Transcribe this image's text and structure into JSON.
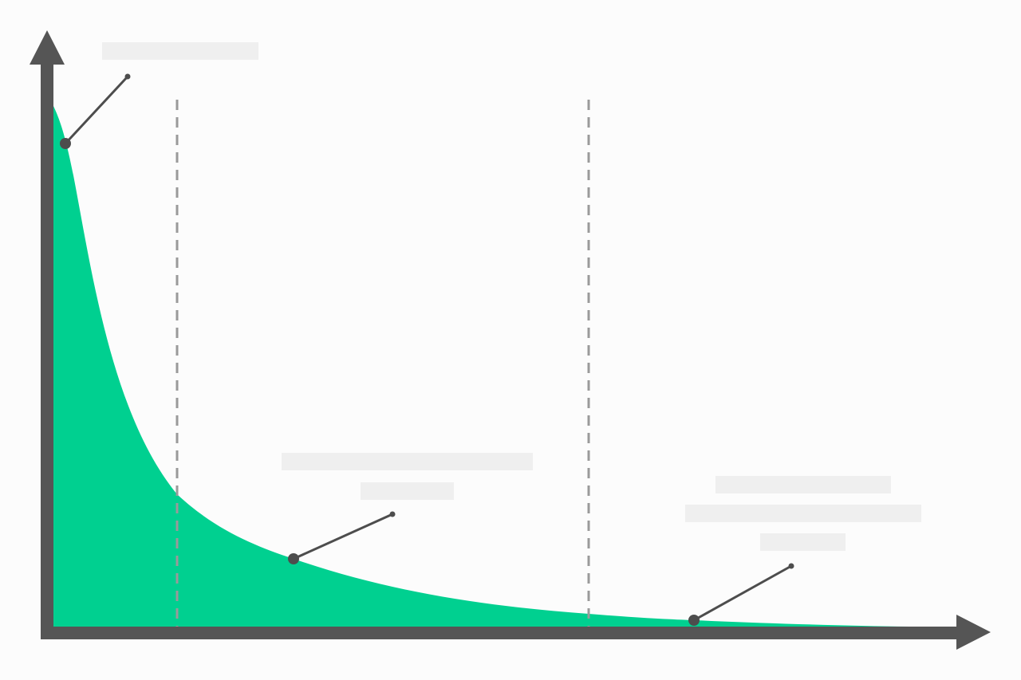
{
  "diagram": {
    "kind": "long-tail distribution curve",
    "colors": {
      "background": "#fcfcfc",
      "area_fill": "#00d090",
      "axis": "#555555",
      "callout_line": "#4d4d4d",
      "divider": "#9a9a9a",
      "label_placeholder": "#efefef"
    },
    "sections": [
      "head",
      "body",
      "tail"
    ],
    "callouts": [
      {
        "target": "head",
        "label_lines": 1
      },
      {
        "target": "body",
        "label_lines": 2
      },
      {
        "target": "tail",
        "label_lines": 3
      }
    ]
  }
}
